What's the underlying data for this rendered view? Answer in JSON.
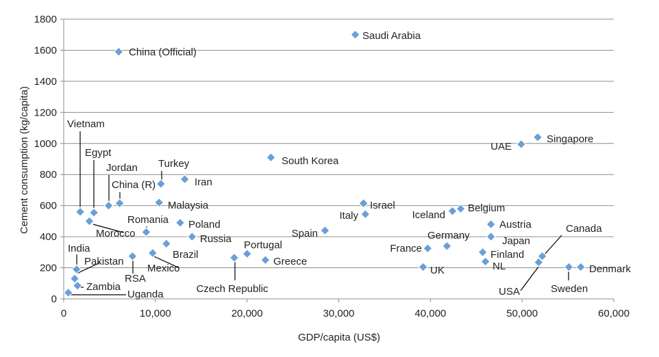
{
  "chart_data": {
    "type": "scatter",
    "title": "",
    "xlabel": "GDP/capita (US$)",
    "ylabel": "Cement consumption (kg/capita)",
    "xlim": [
      0,
      60000
    ],
    "ylim": [
      0,
      1800
    ],
    "x_ticks": [
      0,
      10000,
      20000,
      30000,
      40000,
      50000,
      60000
    ],
    "x_tick_labels": [
      "0",
      "10,000",
      "20,000",
      "30,000",
      "40,000",
      "50,000",
      "60,000"
    ],
    "y_ticks": [
      0,
      200,
      400,
      600,
      800,
      1000,
      1200,
      1400,
      1600,
      1800
    ],
    "y_tick_labels": [
      "0",
      "200",
      "400",
      "600",
      "800",
      "1000",
      "1200",
      "1400",
      "1600",
      "1800"
    ],
    "grid": "horizontal",
    "marker_color": "#6a9fd8",
    "points": [
      {
        "name": "Saudi Arabia",
        "x": 31800,
        "y": 1700
      },
      {
        "name": "China (Official)",
        "x": 6000,
        "y": 1590
      },
      {
        "name": "Singapore",
        "x": 51700,
        "y": 1040
      },
      {
        "name": "UAE",
        "x": 49900,
        "y": 995
      },
      {
        "name": "South Korea",
        "x": 22600,
        "y": 910
      },
      {
        "name": "Iran",
        "x": 13200,
        "y": 770
      },
      {
        "name": "Turkey",
        "x": 10600,
        "y": 740
      },
      {
        "name": "China (R)",
        "x": 6100,
        "y": 615
      },
      {
        "name": "Jordan",
        "x": 4900,
        "y": 600
      },
      {
        "name": "Egypt",
        "x": 3300,
        "y": 555
      },
      {
        "name": "Vietnam",
        "x": 1800,
        "y": 560
      },
      {
        "name": "Malaysia",
        "x": 10400,
        "y": 620
      },
      {
        "name": "Morocco",
        "x": 2800,
        "y": 500
      },
      {
        "name": "Romania",
        "x": 9000,
        "y": 430
      },
      {
        "name": "Poland",
        "x": 12700,
        "y": 490
      },
      {
        "name": "Russia",
        "x": 14000,
        "y": 400
      },
      {
        "name": "Brazil",
        "x": 11200,
        "y": 355
      },
      {
        "name": "Mexico",
        "x": 9700,
        "y": 295
      },
      {
        "name": "RSA",
        "x": 7500,
        "y": 275
      },
      {
        "name": "India",
        "x": 1400,
        "y": 190
      },
      {
        "name": "Pakistan",
        "x": 1200,
        "y": 130
      },
      {
        "name": "Zambia",
        "x": 1500,
        "y": 85
      },
      {
        "name": "Uganda",
        "x": 500,
        "y": 40
      },
      {
        "name": "Czech Republic",
        "x": 18600,
        "y": 265
      },
      {
        "name": "Portugal",
        "x": 20000,
        "y": 290
      },
      {
        "name": "Greece",
        "x": 22000,
        "y": 250
      },
      {
        "name": "Spain",
        "x": 28500,
        "y": 440
      },
      {
        "name": "Israel",
        "x": 32700,
        "y": 615
      },
      {
        "name": "Italy",
        "x": 32900,
        "y": 545
      },
      {
        "name": "Iceland",
        "x": 42400,
        "y": 565
      },
      {
        "name": "Belgium",
        "x": 43300,
        "y": 580
      },
      {
        "name": "Austria",
        "x": 46600,
        "y": 480
      },
      {
        "name": "Japan",
        "x": 46600,
        "y": 400
      },
      {
        "name": "Germany",
        "x": 41800,
        "y": 340
      },
      {
        "name": "France",
        "x": 39700,
        "y": 325
      },
      {
        "name": "UK",
        "x": 39200,
        "y": 205
      },
      {
        "name": "Finland",
        "x": 45700,
        "y": 300
      },
      {
        "name": "NL",
        "x": 46000,
        "y": 240
      },
      {
        "name": "Canada",
        "x": 52200,
        "y": 275
      },
      {
        "name": "USA",
        "x": 51800,
        "y": 235
      },
      {
        "name": "Sweden",
        "x": 55100,
        "y": 205
      },
      {
        "name": "Denmark",
        "x": 56400,
        "y": 205
      }
    ]
  }
}
